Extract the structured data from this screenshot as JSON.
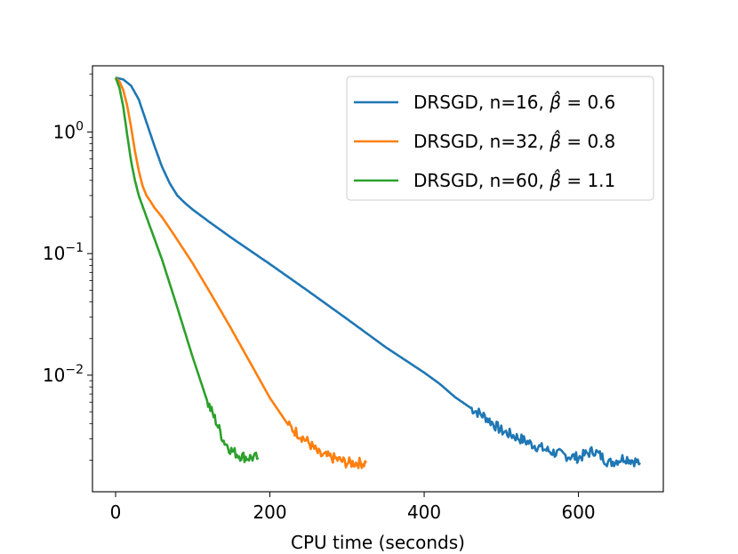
{
  "chart_data": {
    "type": "line",
    "title": "",
    "xlabel": "CPU time (seconds)",
    "ylabel": "",
    "yscale": "log",
    "xlim": [
      -30,
      710
    ],
    "ylim": [
      0.0011,
      3.5
    ],
    "grid": false,
    "legend_position": "top-right",
    "xticks": [
      {
        "value": 0,
        "label": "0"
      },
      {
        "value": 200,
        "label": "200"
      },
      {
        "value": 400,
        "label": "400"
      },
      {
        "value": 600,
        "label": "600"
      }
    ],
    "yticks": [
      {
        "value": 1,
        "base": "10",
        "exp": "0"
      },
      {
        "value": 0.1,
        "base": "10",
        "exp": "−1"
      },
      {
        "value": 0.01,
        "base": "10",
        "exp": "−2"
      }
    ],
    "series": [
      {
        "name": "DRSGD, n=16, β̂ = 0.6",
        "legend_prefix": "DRSGD, n=16, ",
        "legend_beta": "β̂",
        "legend_value": " = 0.6",
        "color": "#1f77b4",
        "x": [
          0,
          10,
          20,
          30,
          40,
          50,
          60,
          70,
          80,
          90,
          100,
          120,
          150,
          200,
          250,
          300,
          350,
          400,
          420,
          440,
          460,
          480,
          500,
          520,
          540,
          560,
          580,
          600,
          620,
          640,
          660,
          680
        ],
        "y": [
          2.8,
          2.7,
          2.4,
          1.85,
          1.2,
          0.78,
          0.52,
          0.38,
          0.3,
          0.26,
          0.23,
          0.185,
          0.135,
          0.082,
          0.049,
          0.029,
          0.017,
          0.0105,
          0.0085,
          0.0066,
          0.0054,
          0.0045,
          0.0035,
          0.0031,
          0.0027,
          0.0024,
          0.0022,
          0.0021,
          0.0024,
          0.0019,
          0.0021,
          0.0019
        ]
      },
      {
        "name": "DRSGD, n=32, β̂ = 0.8",
        "legend_prefix": "DRSGD, n=32, ",
        "legend_beta": "β̂",
        "legend_value": " = 0.8",
        "color": "#ff7f0e",
        "x": [
          0,
          5,
          10,
          15,
          20,
          25,
          30,
          35,
          40,
          45,
          50,
          60,
          75,
          100,
          125,
          150,
          175,
          200,
          225,
          250,
          265,
          280,
          300,
          325
        ],
        "y": [
          2.8,
          2.6,
          2.2,
          1.65,
          1.1,
          0.7,
          0.48,
          0.36,
          0.3,
          0.27,
          0.24,
          0.2,
          0.145,
          0.083,
          0.045,
          0.024,
          0.0125,
          0.0065,
          0.0038,
          0.0028,
          0.0022,
          0.0021,
          0.0019,
          0.0019
        ]
      },
      {
        "name": "DRSGD, n=60, β̂ = 1.1",
        "legend_prefix": "DRSGD, n=60, ",
        "legend_beta": "β̂",
        "legend_value": " = 1.1",
        "color": "#2ca02c",
        "x": [
          0,
          5,
          10,
          15,
          20,
          25,
          30,
          40,
          60,
          80,
          100,
          120,
          130,
          140,
          150,
          160,
          170,
          185
        ],
        "y": [
          2.8,
          2.3,
          1.6,
          0.95,
          0.58,
          0.4,
          0.3,
          0.2,
          0.09,
          0.036,
          0.014,
          0.0058,
          0.0042,
          0.0029,
          0.0024,
          0.0022,
          0.0021,
          0.0021
        ]
      }
    ]
  }
}
